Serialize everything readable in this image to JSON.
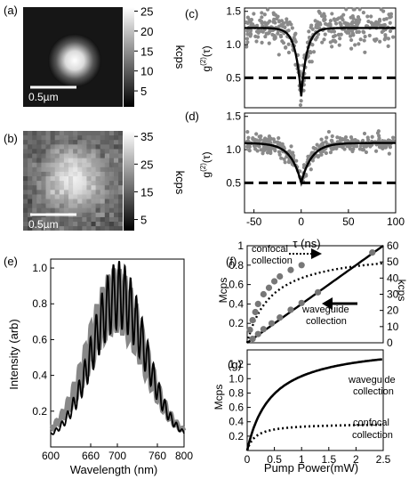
{
  "chart_data": [
    {
      "panel": "(a)",
      "type": "heatmap",
      "colorbar_label": "kcps",
      "colorbar_ticks": [
        "25",
        "20",
        "15",
        "10",
        "5"
      ],
      "scale_bar_label": "0.5µm"
    },
    {
      "panel": "(b)",
      "type": "heatmap",
      "colorbar_label": "kcps",
      "colorbar_ticks": [
        "35",
        "25",
        "15",
        "5"
      ],
      "scale_bar_label": "0.5µm"
    },
    {
      "panel": "(c)",
      "type": "scatter",
      "ylabel": "g(2)(τ)",
      "xlim": [
        -60,
        100
      ],
      "ylim": [
        0.05,
        1.55
      ],
      "yticks": [
        "0.5",
        "1.0",
        "1.5"
      ],
      "fit": {
        "type": "antibunching-dip",
        "baseline": 1.25,
        "minimum": 0.22,
        "tau_ns": 6.0
      },
      "threshold": 0.5
    },
    {
      "panel": "(d)",
      "type": "scatter",
      "xlabel": "τ (ns)",
      "ylabel": "g(2)(τ)",
      "xlim": [
        -60,
        100
      ],
      "ylim": [
        0.05,
        1.55
      ],
      "xticks": [
        "-50",
        "0",
        "50",
        "100"
      ],
      "yticks": [
        "0.5",
        "1.0",
        "1.5"
      ],
      "fit": {
        "type": "antibunching-dip",
        "baseline": 1.1,
        "minimum": 0.5,
        "tau_ns": 11.0
      },
      "threshold": 0.5
    },
    {
      "panel": "(e)",
      "type": "line",
      "xlabel": "Wavelength (nm)",
      "ylabel": "Intensity (arb)",
      "xlim": [
        600,
        800
      ],
      "ylim": [
        0,
        1.05
      ],
      "xticks": [
        "600",
        "660",
        "700",
        "760",
        "800"
      ],
      "yticks": [
        "0.2",
        "0.4",
        "0.6",
        "0.8",
        "1.0"
      ],
      "series": [
        {
          "color": "#888888",
          "peak": 0.95,
          "center_nm": 698,
          "sigma_nm": 42,
          "baseline": 0.05,
          "fringe_period_nm": 8.6
        },
        {
          "color": "#000000",
          "peak": 1.0,
          "center_nm": 702,
          "sigma_nm": 40,
          "baseline": 0.04,
          "fringe_period_nm": 8.6
        }
      ]
    },
    {
      "panel": "(f)",
      "type": "scatter",
      "ylabel": "Mcps",
      "ylabel_right": "kcps",
      "xlim": [
        0,
        2.5
      ],
      "ylim": [
        0,
        1.0
      ],
      "ylim_right": [
        0,
        60
      ],
      "yticks": [
        "0.2",
        "0.4",
        "0.6",
        "0.8",
        "1"
      ],
      "yticks_right": [
        "0",
        "10",
        "20",
        "30",
        "40",
        "50",
        "60"
      ],
      "annotations": [
        "confocal",
        "collection",
        "waveguide",
        "collection"
      ],
      "series": [
        {
          "label": "confocal collection",
          "axis": "right",
          "x": [
            0.05,
            0.1,
            0.15,
            0.2,
            0.3,
            0.4,
            0.5,
            0.6,
            0.8,
            1.0
          ],
          "y": [
            8,
            14,
            19,
            24,
            30,
            34,
            38,
            41,
            45,
            48
          ],
          "fit": {
            "type": "saturation",
            "Isat": 58,
            "Psat": 0.45
          }
        },
        {
          "label": "waveguide collection",
          "axis": "left",
          "x": [
            0.1,
            0.2,
            0.3,
            0.45,
            0.6,
            0.8,
            1.0,
            1.3,
            2.3
          ],
          "y": [
            0.04,
            0.09,
            0.14,
            0.2,
            0.26,
            0.34,
            0.41,
            0.52,
            0.93
          ],
          "fit": {
            "type": "linear",
            "slope": 0.4,
            "intercept": 0.0
          }
        }
      ]
    },
    {
      "panel": "(g)",
      "type": "line",
      "xlabel": "Pump Power(mW)",
      "ylabel": "Mcps",
      "xlim": [
        0,
        2.5
      ],
      "ylim": [
        0,
        1.4
      ],
      "xticks": [
        "0",
        "0.5",
        "1",
        "1.5",
        "2",
        "2.5"
      ],
      "yticks": [
        "0.2",
        "0.4",
        "0.6",
        "0.8",
        "1.0",
        "1.2"
      ],
      "annotations": [
        "waveguide",
        "collection",
        "confocal",
        "collection"
      ],
      "series": [
        {
          "label": "waveguide collection",
          "style": "solid",
          "fit": {
            "type": "saturation",
            "Isat": 1.5,
            "Psat": 0.45
          }
        },
        {
          "label": "confocal collection",
          "style": "dotted",
          "fit": {
            "type": "saturation",
            "Isat": 0.38,
            "Psat": 0.15
          }
        }
      ]
    }
  ]
}
